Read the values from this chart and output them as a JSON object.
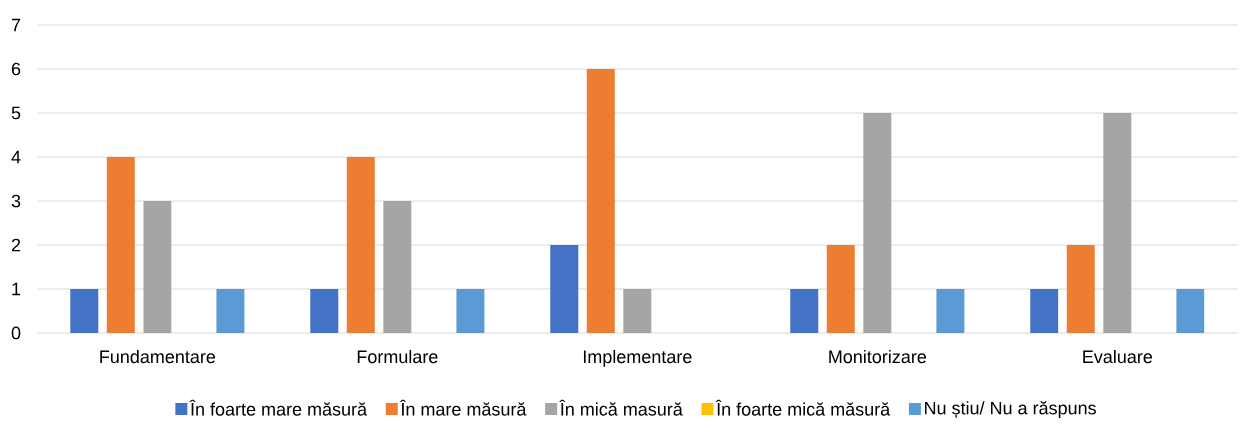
{
  "chart_data": {
    "type": "bar",
    "categories": [
      "Fundamentare",
      "Formulare",
      "Implementare",
      "Monitorizare",
      "Evaluare"
    ],
    "series": [
      {
        "name": "În foarte mare măsură",
        "color": "#4472c4",
        "values": [
          1,
          1,
          2,
          1,
          1
        ]
      },
      {
        "name": "În mare măsură",
        "color": "#ed7d31",
        "values": [
          4,
          4,
          6,
          2,
          2
        ]
      },
      {
        "name": "În mică masură",
        "color": "#a5a5a5",
        "values": [
          3,
          3,
          1,
          5,
          5
        ]
      },
      {
        "name": "În foarte mică măsură",
        "color": "#ffc000",
        "values": [
          0,
          0,
          0,
          0,
          0
        ]
      },
      {
        "name": "Nu știu/ Nu a răspuns",
        "color": "#5b9bd5",
        "values": [
          1,
          1,
          0,
          1,
          1
        ]
      }
    ],
    "ylim": [
      0,
      7
    ],
    "yticks": [
      0,
      1,
      2,
      3,
      4,
      5,
      6,
      7
    ],
    "grid": "y",
    "legend": "bottom"
  }
}
